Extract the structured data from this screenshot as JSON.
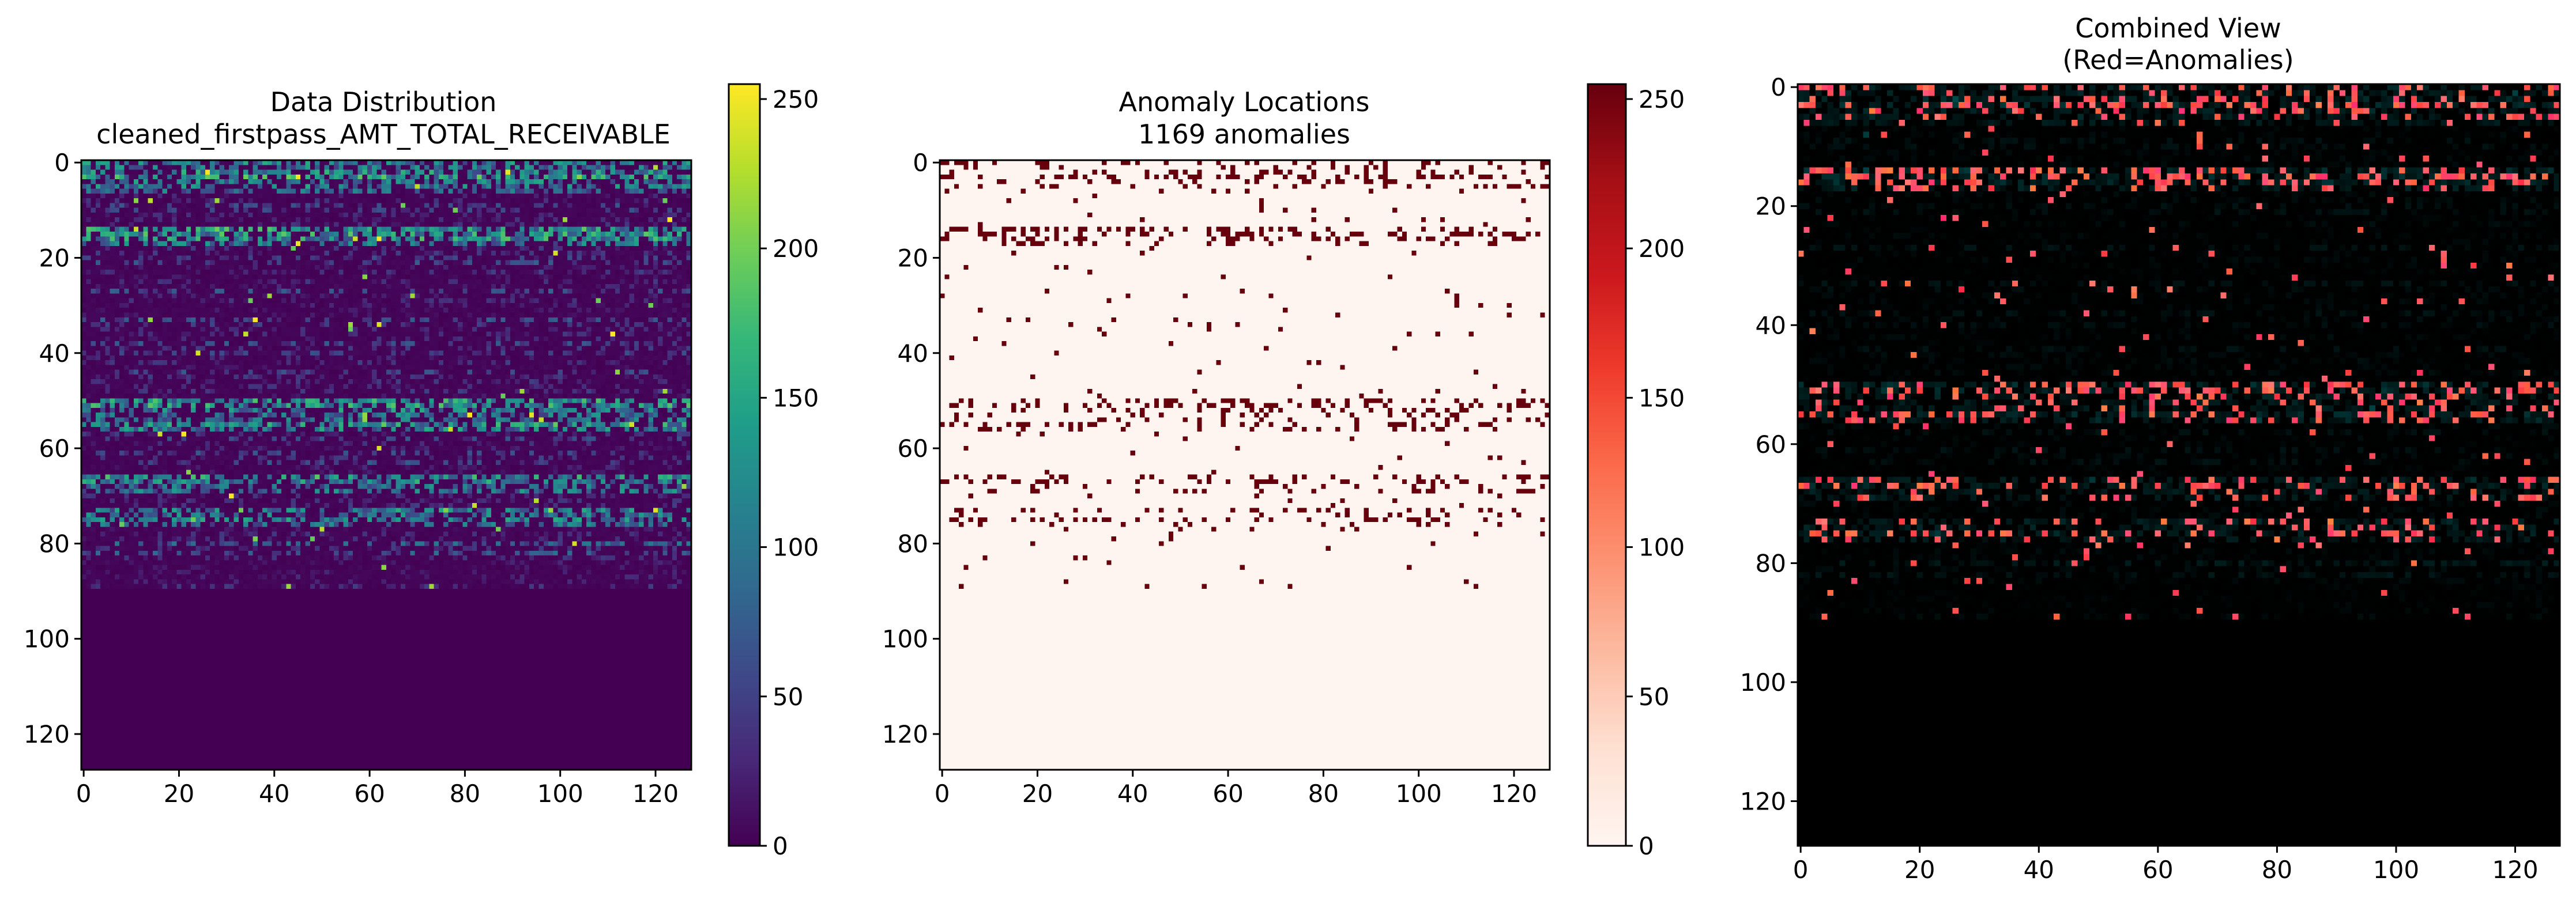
{
  "figure_background": "#ffffff",
  "chart_data": [
    {
      "type": "heatmap",
      "title_lines": [
        "Data Distribution",
        "cleaned_firstpass_AMT_TOTAL_RECEIVABLE"
      ],
      "colormap": "viridis",
      "grid_shape": [
        128,
        128
      ],
      "xlim": [
        0,
        128
      ],
      "ylim": [
        0,
        128
      ],
      "xticks": [
        "0",
        "20",
        "40",
        "60",
        "80",
        "100",
        "120"
      ],
      "yticks": [
        "0",
        "20",
        "40",
        "60",
        "80",
        "100",
        "120"
      ],
      "colorbar": {
        "range": [
          0,
          255
        ],
        "ticks": [
          "0",
          "50",
          "100",
          "150",
          "200",
          "250"
        ]
      },
      "data_rows_extent": [
        0,
        90
      ],
      "dense_bands": [
        [
          0,
          6
        ],
        [
          14,
          17
        ],
        [
          50,
          56
        ],
        [
          66,
          69
        ],
        [
          73,
          76
        ]
      ]
    },
    {
      "type": "heatmap",
      "title_lines": [
        "Anomaly Locations",
        "1169 anomalies"
      ],
      "colormap": "Reds",
      "grid_shape": [
        128,
        128
      ],
      "xlim": [
        0,
        128
      ],
      "ylim": [
        0,
        128
      ],
      "xticks": [
        "0",
        "20",
        "40",
        "60",
        "80",
        "100",
        "120"
      ],
      "yticks": [
        "0",
        "20",
        "40",
        "60",
        "80",
        "100",
        "120"
      ],
      "colorbar": {
        "range": [
          0,
          255
        ],
        "ticks": [
          "0",
          "50",
          "100",
          "150",
          "200",
          "250"
        ]
      },
      "anomaly_count": 1169,
      "anomaly_color": "#67000d",
      "background_color": "#fff5f0"
    },
    {
      "type": "heatmap",
      "title_lines": [
        "Combined View",
        "(Red=Anomalies)"
      ],
      "colormap": "rgb overlay",
      "grid_shape": [
        128,
        128
      ],
      "xlim": [
        0,
        128
      ],
      "ylim": [
        0,
        128
      ],
      "xticks": [
        "0",
        "20",
        "40",
        "60",
        "80",
        "100",
        "120"
      ],
      "yticks": [
        "0",
        "20",
        "40",
        "60",
        "80",
        "100",
        "120"
      ],
      "anomaly_color": "#ff2a3a",
      "background_color": "#000000"
    }
  ]
}
